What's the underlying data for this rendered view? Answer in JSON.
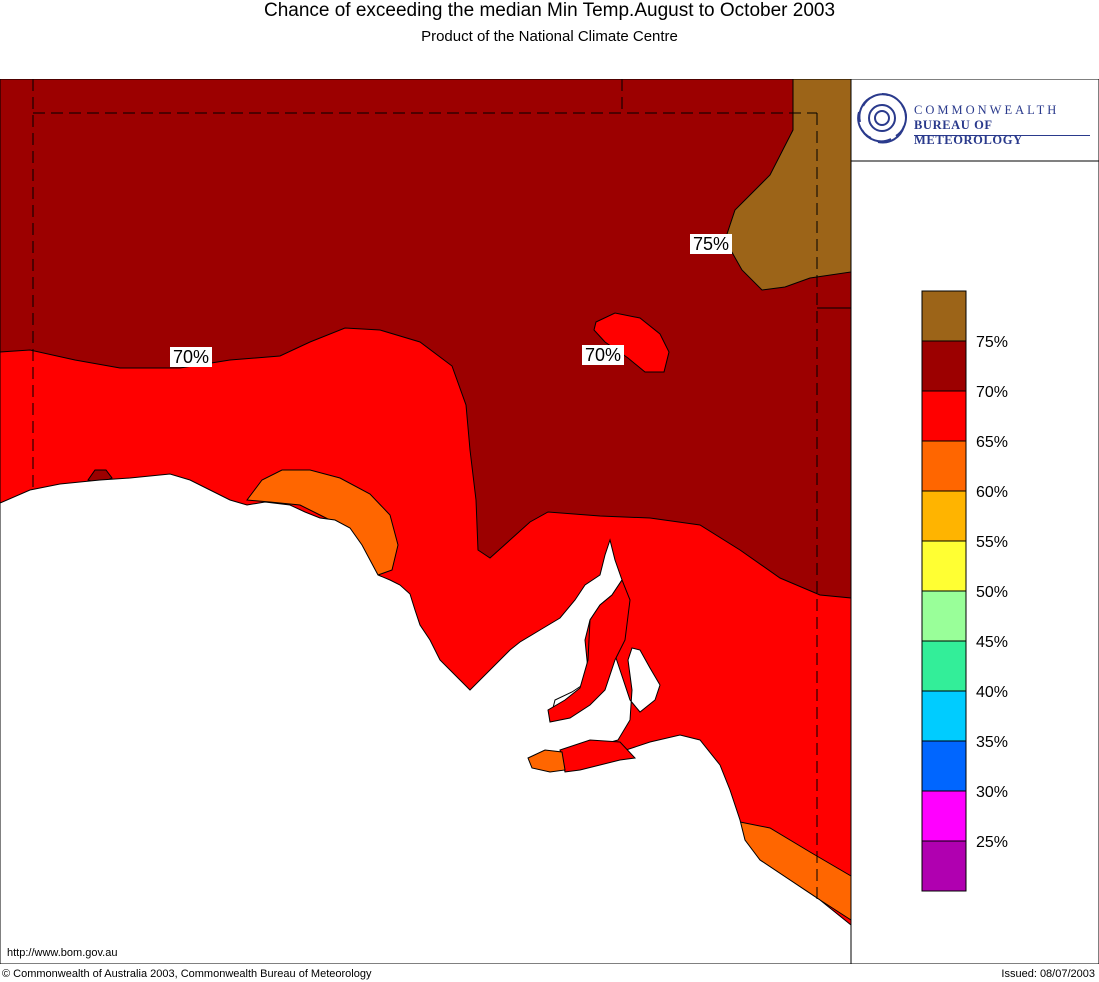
{
  "title": "Chance of exceeding the median Min Temp.August to October 2003",
  "subtitle": "Product of the National Climate Centre",
  "logo": {
    "line1": "COMMONWEALTH",
    "line2": "BUREAU OF METEOROLOGY",
    "icon": "spiral-logo-icon"
  },
  "map_labels": {
    "ne": "75%",
    "west": "70%",
    "centre": "70%"
  },
  "legend": [
    {
      "label": "75%",
      "color": "#9c6418"
    },
    {
      "label": "70%",
      "color": "#9c0000"
    },
    {
      "label": "65%",
      "color": "#ff0000"
    },
    {
      "label": "60%",
      "color": "#ff6600"
    },
    {
      "label": "55%",
      "color": "#ffb400"
    },
    {
      "label": "50%",
      "color": "#ffff33"
    },
    {
      "label": "45%",
      "color": "#99ff99"
    },
    {
      "label": "40%",
      "color": "#33ee99"
    },
    {
      "label": "35%",
      "color": "#00ccff"
    },
    {
      "label": "30%",
      "color": "#0066ff"
    },
    {
      "label": "25%",
      "color": "#ff00ff"
    },
    {
      "label": "",
      "color": "#b000b0"
    }
  ],
  "url": "http://www.bom.gov.au",
  "footer_left": "© Commonwealth of Australia 2003, Commonwealth Bureau of Meteorology",
  "footer_right": "Issued: 08/07/2003"
}
